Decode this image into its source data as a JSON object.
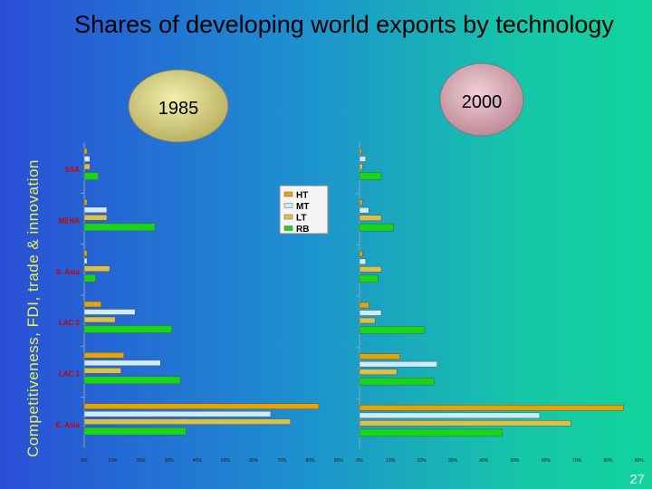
{
  "side_title": "Competitiveness, FDI, trade & innovation",
  "title": "Shares of developing world exports by technology",
  "page_number": "27",
  "colors": {
    "HT": "#e6a400",
    "MT": "#ccecff",
    "LT": "#d9c24a",
    "RB": "#16d616",
    "tick_label": "#cc0000"
  },
  "chart_data": [
    {
      "type": "bar",
      "orientation": "horizontal",
      "title": "1985",
      "categories": [
        "SSA",
        "MENA",
        "S. Asia",
        "LAC 2",
        "LAC 1",
        "E. Asia"
      ],
      "series": [
        {
          "name": "HT",
          "values": [
            1,
            1,
            1,
            6,
            14,
            83
          ]
        },
        {
          "name": "MT",
          "values": [
            2,
            8,
            1,
            18,
            27,
            66
          ]
        },
        {
          "name": "LT",
          "values": [
            2,
            8,
            9,
            11,
            13,
            73
          ]
        },
        {
          "name": "RB",
          "values": [
            5,
            25,
            4,
            31,
            34,
            36
          ]
        }
      ],
      "x_ticks": [
        "0%",
        "10%",
        "20%",
        "30%",
        "40%",
        "50%",
        "60%",
        "70%",
        "80%",
        "90%"
      ],
      "xlim": [
        0,
        90
      ],
      "legend": [
        "HT",
        "MT",
        "LT",
        "RB"
      ],
      "legend_position": "right"
    },
    {
      "type": "bar",
      "orientation": "horizontal",
      "title": "2000",
      "categories": [
        "SSA",
        "MENA",
        "S. Asia",
        "LAC 2",
        "LAC 1",
        "E. Asia"
      ],
      "series": [
        {
          "name": "HT",
          "values": [
            0,
            1,
            1,
            3,
            13,
            85
          ]
        },
        {
          "name": "MT",
          "values": [
            2,
            3,
            2,
            7,
            25,
            58
          ]
        },
        {
          "name": "LT",
          "values": [
            1,
            7,
            7,
            5,
            12,
            68
          ]
        },
        {
          "name": "RB",
          "values": [
            7,
            11,
            6,
            21,
            24,
            46
          ]
        }
      ],
      "x_ticks": [
        "0%",
        "10%",
        "20%",
        "30%",
        "40%",
        "50%",
        "60%",
        "70%",
        "80%",
        "90%"
      ],
      "xlim": [
        0,
        90
      ]
    }
  ]
}
